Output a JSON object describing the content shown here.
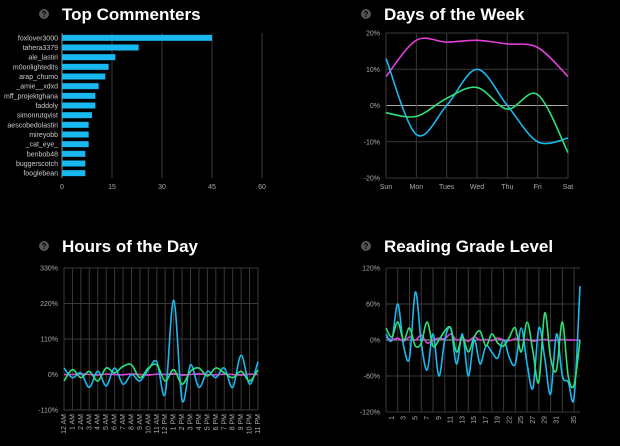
{
  "panels": {
    "top_commenters": {
      "title": "Top Commenters",
      "chart_data": {
        "type": "bar",
        "orientation": "horizontal",
        "title": "Top Commenters",
        "categories": [
          "foxlover3000",
          "tahera3379",
          "ale_lastiri",
          "m0onlightedits",
          "arap_chumo",
          "_amie__xdxd",
          "mff_projektghana",
          "faddoly",
          "simonrutqvist",
          "aescobedolastiri",
          "mireyobb",
          "_cat_eye_",
          "benbob48",
          "buggerscotch",
          "fooglebean"
        ],
        "values": [
          45,
          23,
          16,
          14,
          13,
          11,
          10,
          10,
          9,
          8,
          8,
          8,
          7,
          7,
          7
        ],
        "xlim": [
          0,
          60
        ],
        "xticks": [
          0,
          15,
          30,
          45,
          60
        ],
        "bar_color": "#1ab8f0"
      }
    },
    "days_of_week": {
      "title": "Days of the Week",
      "chart_data": {
        "type": "line",
        "title": "Days of the Week",
        "categories": [
          "Sun",
          "Mon",
          "Tues",
          "Wed",
          "Thu",
          "Fri",
          "Sat"
        ],
        "ylim": [
          -20,
          20
        ],
        "yticks": [
          20,
          10,
          0,
          -10,
          -20
        ],
        "ytick_labels": [
          "20%",
          "10%",
          "0%",
          "-10%",
          "-20%"
        ],
        "series": [
          {
            "name": "magenta",
            "color": "#e040d8",
            "values": [
              8,
              18,
              17.5,
              18,
              17,
              16,
              8
            ]
          },
          {
            "name": "cyan",
            "color": "#1ab8f0",
            "values": [
              13,
              -8,
              0,
              10,
              0,
              -10,
              -9
            ]
          },
          {
            "name": "green",
            "color": "#2ee07a",
            "values": [
              -2,
              -3,
              2,
              5,
              -1,
              3,
              -13
            ]
          }
        ]
      }
    },
    "hours_of_day": {
      "title": "Hours of the Day",
      "chart_data": {
        "type": "line",
        "title": "Hours of the Day",
        "categories": [
          "12 AM",
          "1 AM",
          "2 AM",
          "3 AM",
          "4 AM",
          "5 AM",
          "6 AM",
          "7 AM",
          "8 AM",
          "9 AM",
          "10 AM",
          "11 AM",
          "12 PM",
          "1 PM",
          "2 PM",
          "3 PM",
          "4 PM",
          "5 PM",
          "6 PM",
          "7 PM",
          "8 PM",
          "9 PM",
          "10 PM",
          "11 PM"
        ],
        "ylim": [
          -110,
          330
        ],
        "yticks": [
          330,
          220,
          110,
          0,
          -110
        ],
        "ytick_labels": [
          "330%",
          "220%",
          "110%",
          "0%",
          "-110%"
        ],
        "series": [
          {
            "name": "magenta",
            "color": "#e040d8",
            "values": [
              0,
              0,
              2,
              0,
              -2,
              1,
              0,
              -1,
              2,
              0,
              -2,
              1,
              0,
              3,
              -2,
              0,
              2,
              0,
              -1,
              1,
              0,
              -2,
              1,
              0
            ]
          },
          {
            "name": "cyan",
            "color": "#1ab8f0",
            "values": [
              20,
              -10,
              5,
              -40,
              10,
              -35,
              20,
              -30,
              0,
              -20,
              15,
              40,
              -60,
              230,
              -80,
              30,
              -40,
              10,
              -10,
              20,
              -40,
              60,
              -30,
              40
            ]
          },
          {
            "name": "green",
            "color": "#2ee07a",
            "values": [
              -20,
              15,
              -10,
              10,
              -20,
              20,
              5,
              25,
              30,
              -10,
              20,
              30,
              -20,
              15,
              -30,
              10,
              20,
              -5,
              20,
              5,
              -10,
              10,
              -20,
              15
            ]
          }
        ]
      }
    },
    "reading_grade_level": {
      "title": "Reading Grade Level",
      "chart_data": {
        "type": "line",
        "title": "Reading Grade Level",
        "categories": [
          "1",
          "3",
          "5",
          "7",
          "9",
          "11",
          "13",
          "15",
          "17",
          "19",
          "22",
          "25",
          "27",
          "29",
          "31",
          "35"
        ],
        "x": [
          0,
          1,
          2,
          3,
          4,
          5,
          6,
          7,
          8,
          9,
          10,
          11,
          12,
          13,
          14,
          15,
          16,
          17,
          18,
          19,
          20,
          21,
          22,
          23,
          24,
          25,
          26,
          27,
          28,
          29,
          30,
          31,
          32,
          33
        ],
        "xtick_indices": [
          1,
          3,
          5,
          7,
          9,
          11,
          13,
          15,
          17,
          19,
          21,
          23,
          25,
          27,
          29,
          32
        ],
        "ylim": [
          -120,
          120
        ],
        "yticks": [
          120,
          60,
          0,
          -60,
          -120
        ],
        "ytick_labels": [
          "120%",
          "60%",
          "0%",
          "-60%",
          "-120%"
        ],
        "series": [
          {
            "name": "magenta",
            "color": "#e040d8",
            "values": [
              5,
              0,
              3,
              -2,
              5,
              0,
              8,
              -5,
              0,
              3,
              2,
              10,
              0,
              3,
              -2,
              5,
              0,
              1,
              -1,
              3,
              0,
              -1,
              2,
              0,
              1,
              -2,
              0,
              1,
              -1,
              0,
              1,
              0,
              0,
              0
            ]
          },
          {
            "name": "cyan",
            "color": "#1ab8f0",
            "values": [
              10,
              0,
              60,
              -10,
              -30,
              80,
              -5,
              -50,
              10,
              -60,
              0,
              20,
              -40,
              10,
              -60,
              0,
              -40,
              -10,
              -20,
              -30,
              0,
              -30,
              -40,
              20,
              -40,
              -80,
              20,
              -30,
              -90,
              10,
              -60,
              -70,
              -95,
              90
            ]
          },
          {
            "name": "green",
            "color": "#2ee07a",
            "values": [
              20,
              5,
              30,
              0,
              20,
              -10,
              -5,
              30,
              -10,
              0,
              15,
              20,
              -20,
              5,
              -20,
              5,
              15,
              -10,
              10,
              -5,
              -10,
              5,
              20,
              -20,
              30,
              -20,
              -70,
              45,
              -30,
              -50,
              30,
              -60,
              -75,
              0
            ]
          }
        ]
      }
    }
  },
  "colors": {
    "background": "#000000",
    "grid": "#3a3a3a",
    "icon": "#555555"
  }
}
